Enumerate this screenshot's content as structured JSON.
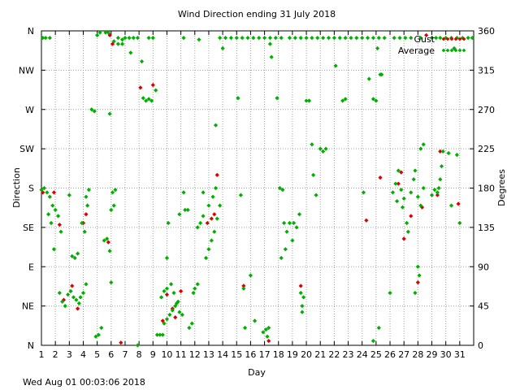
{
  "footer": {
    "timestamp": "Wed Aug 01 00:03:06 2018"
  },
  "chart_data": {
    "type": "scatter",
    "title": "Wind Direction ending 31 July 2018",
    "xlabel": "Day",
    "ylabel_left": "Direction",
    "ylabel_right": "Degrees",
    "xlim": [
      1,
      32
    ],
    "ylim": [
      0,
      360
    ],
    "grid": true,
    "legend_position": "top-right",
    "x_ticks": [
      1,
      2,
      3,
      4,
      5,
      6,
      7,
      8,
      9,
      10,
      11,
      12,
      13,
      14,
      15,
      16,
      17,
      18,
      19,
      20,
      21,
      22,
      23,
      24,
      25,
      26,
      27,
      28,
      29,
      30,
      31
    ],
    "x_tick_labels": [
      "1",
      "2",
      "3",
      "4",
      "5",
      "6",
      "7",
      "8",
      "9",
      "10",
      "11",
      "12",
      "13",
      "14",
      "15",
      "16",
      "17",
      "18",
      "19",
      "20",
      "21",
      "22",
      "23",
      "24",
      "25",
      "26",
      "27",
      "28",
      "29",
      "30",
      "31"
    ],
    "left_ticks": [
      0,
      45,
      90,
      135,
      180,
      225,
      270,
      315,
      360
    ],
    "left_tick_labels": [
      "N",
      "NE",
      "E",
      "SE",
      "S",
      "SW",
      "W",
      "NW",
      "N"
    ],
    "right_ticks": [
      0,
      45,
      90,
      135,
      180,
      225,
      270,
      315,
      360
    ],
    "right_tick_labels": [
      "0",
      "45",
      "90",
      "135",
      "180",
      "225",
      "270",
      "315",
      "360"
    ],
    "colors": {
      "gust": "#dd0000",
      "average": "#00b000",
      "grid": "#a0a0a0"
    },
    "series": [
      {
        "name": "Gust",
        "points": [
          [
            1.1,
            175
          ],
          [
            1.9,
            175
          ],
          [
            2.3,
            138
          ],
          [
            2.6,
            52
          ],
          [
            3.2,
            68
          ],
          [
            3.6,
            42
          ],
          [
            4.0,
            140
          ],
          [
            4.2,
            150
          ],
          [
            5.8,
            118
          ],
          [
            5.9,
            355
          ],
          [
            6.1,
            345
          ],
          [
            6.7,
            3
          ],
          [
            8.1,
            295
          ],
          [
            9.0,
            298
          ],
          [
            9.7,
            28
          ],
          [
            10.0,
            58
          ],
          [
            10.4,
            42
          ],
          [
            10.6,
            32
          ],
          [
            11.0,
            62
          ],
          [
            12.9,
            140
          ],
          [
            13.2,
            145
          ],
          [
            13.4,
            150
          ],
          [
            13.6,
            195
          ],
          [
            15.5,
            68
          ],
          [
            17.3,
            5
          ],
          [
            19.6,
            68
          ],
          [
            24.3,
            143
          ],
          [
            25.3,
            192
          ],
          [
            26.6,
            185
          ],
          [
            26.8,
            198
          ],
          [
            27.0,
            122
          ],
          [
            27.5,
            148
          ],
          [
            28.0,
            72
          ],
          [
            28.3,
            158
          ],
          [
            28.6,
            355
          ],
          [
            29.4,
            172
          ],
          [
            29.6,
            222
          ],
          [
            30.9,
            162
          ]
        ]
      },
      {
        "name": "Average",
        "points": [
          [
            1.1,
            352
          ],
          [
            1.3,
            352
          ],
          [
            1.6,
            352
          ],
          [
            1.0,
            178
          ],
          [
            1.2,
            180
          ],
          [
            1.4,
            175
          ],
          [
            1.6,
            170
          ],
          [
            1.8,
            160
          ],
          [
            2.0,
            155
          ],
          [
            2.2,
            148
          ],
          [
            2.4,
            130
          ],
          [
            1.5,
            150
          ],
          [
            1.7,
            140
          ],
          [
            1.9,
            110
          ],
          [
            2.3,
            60
          ],
          [
            2.5,
            50
          ],
          [
            2.7,
            45
          ],
          [
            2.9,
            58
          ],
          [
            3.1,
            62
          ],
          [
            3.3,
            55
          ],
          [
            3.5,
            52
          ],
          [
            3.7,
            48
          ],
          [
            3.2,
            102
          ],
          [
            3.4,
            100
          ],
          [
            3.6,
            105
          ],
          [
            3.0,
            172
          ],
          [
            3.9,
            140
          ],
          [
            4.1,
            130
          ],
          [
            4.3,
            160
          ],
          [
            4.2,
            170
          ],
          [
            4.4,
            178
          ],
          [
            3.8,
            55
          ],
          [
            4.0,
            60
          ],
          [
            4.2,
            70
          ],
          [
            4.6,
            270
          ],
          [
            4.8,
            268
          ],
          [
            4.9,
            10
          ],
          [
            5.1,
            12
          ],
          [
            5.3,
            20
          ],
          [
            5.0,
            355
          ],
          [
            5.2,
            358
          ],
          [
            5.6,
            358
          ],
          [
            5.8,
            358
          ],
          [
            5.5,
            120
          ],
          [
            5.7,
            122
          ],
          [
            5.9,
            108
          ],
          [
            6.0,
            155
          ],
          [
            6.2,
            160
          ],
          [
            6.1,
            175
          ],
          [
            6.3,
            178
          ],
          [
            5.9,
            265
          ],
          [
            6.0,
            72
          ],
          [
            6.2,
            348
          ],
          [
            6.5,
            352
          ],
          [
            6.8,
            350
          ],
          [
            7.0,
            352
          ],
          [
            7.3,
            352
          ],
          [
            7.6,
            352
          ],
          [
            7.9,
            352
          ],
          [
            6.5,
            345
          ],
          [
            6.8,
            345
          ],
          [
            7.4,
            335
          ],
          [
            8.2,
            325
          ],
          [
            8.5,
            280
          ],
          [
            8.7,
            282
          ],
          [
            8.9,
            280
          ],
          [
            8.3,
            283
          ],
          [
            7.9,
            0
          ],
          [
            8.7,
            352
          ],
          [
            9.0,
            352
          ],
          [
            9.3,
            12
          ],
          [
            9.5,
            12
          ],
          [
            9.7,
            12
          ],
          [
            9.2,
            292
          ],
          [
            9.8,
            25
          ],
          [
            10.0,
            30
          ],
          [
            10.2,
            35
          ],
          [
            10.4,
            40
          ],
          [
            10.6,
            45
          ],
          [
            10.8,
            50
          ],
          [
            9.6,
            55
          ],
          [
            9.8,
            62
          ],
          [
            10.0,
            65
          ],
          [
            10.3,
            70
          ],
          [
            10.5,
            60
          ],
          [
            10.7,
            48
          ],
          [
            10.9,
            38
          ],
          [
            11.1,
            35
          ],
          [
            10.0,
            100
          ],
          [
            10.1,
            140
          ],
          [
            10.9,
            150
          ],
          [
            11.3,
            155
          ],
          [
            11.5,
            155
          ],
          [
            11.2,
            175
          ],
          [
            11.6,
            20
          ],
          [
            11.8,
            25
          ],
          [
            12.0,
            65
          ],
          [
            12.2,
            70
          ],
          [
            11.9,
            60
          ],
          [
            12.2,
            135
          ],
          [
            12.4,
            140
          ],
          [
            12.6,
            148
          ],
          [
            12.8,
            100
          ],
          [
            13.0,
            110
          ],
          [
            13.2,
            120
          ],
          [
            13.4,
            130
          ],
          [
            13.6,
            145
          ],
          [
            13.8,
            160
          ],
          [
            13.0,
            160
          ],
          [
            13.3,
            170
          ],
          [
            13.5,
            180
          ],
          [
            12.6,
            175
          ],
          [
            12.3,
            350
          ],
          [
            11.2,
            352
          ],
          [
            13.5,
            252
          ],
          [
            13.8,
            352
          ],
          [
            14.2,
            352
          ],
          [
            14.6,
            352
          ],
          [
            15.0,
            352
          ],
          [
            15.4,
            352
          ],
          [
            15.8,
            352
          ],
          [
            16.2,
            352
          ],
          [
            16.6,
            352
          ],
          [
            17.0,
            352
          ],
          [
            17.4,
            352
          ],
          [
            17.8,
            352
          ],
          [
            18.2,
            352
          ],
          [
            14.0,
            340
          ],
          [
            15.1,
            283
          ],
          [
            15.3,
            172
          ],
          [
            15.5,
            65
          ],
          [
            16.0,
            80
          ],
          [
            15.6,
            20
          ],
          [
            16.3,
            28
          ],
          [
            16.9,
            15
          ],
          [
            17.1,
            18
          ],
          [
            17.3,
            20
          ],
          [
            17.2,
            10
          ],
          [
            17.5,
            330
          ],
          [
            17.4,
            345
          ],
          [
            17.9,
            283
          ],
          [
            18.1,
            180
          ],
          [
            18.3,
            178
          ],
          [
            18.4,
            140
          ],
          [
            18.6,
            130
          ],
          [
            18.5,
            110
          ],
          [
            18.8,
            140
          ],
          [
            18.2,
            100
          ],
          [
            19.0,
            120
          ],
          [
            19.1,
            140
          ],
          [
            19.3,
            135
          ],
          [
            19.5,
            150
          ],
          [
            19.6,
            60
          ],
          [
            19.8,
            55
          ],
          [
            19.7,
            45
          ],
          [
            19.7,
            38
          ],
          [
            18.8,
            352
          ],
          [
            19.2,
            352
          ],
          [
            19.6,
            352
          ],
          [
            20.0,
            352
          ],
          [
            20.4,
            352
          ],
          [
            20.8,
            352
          ],
          [
            21.2,
            352
          ],
          [
            21.6,
            352
          ],
          [
            22.0,
            352
          ],
          [
            22.4,
            352
          ],
          [
            22.8,
            352
          ],
          [
            23.2,
            352
          ],
          [
            23.6,
            352
          ],
          [
            24.0,
            352
          ],
          [
            24.4,
            352
          ],
          [
            24.8,
            352
          ],
          [
            25.2,
            352
          ],
          [
            25.6,
            352
          ],
          [
            20.0,
            280
          ],
          [
            20.2,
            280
          ],
          [
            20.4,
            230
          ],
          [
            20.5,
            195
          ],
          [
            20.7,
            172
          ],
          [
            21.0,
            225
          ],
          [
            21.2,
            222
          ],
          [
            21.4,
            225
          ],
          [
            22.1,
            320
          ],
          [
            22.6,
            280
          ],
          [
            22.8,
            282
          ],
          [
            24.1,
            175
          ],
          [
            24.5,
            305
          ],
          [
            24.8,
            282
          ],
          [
            25.0,
            280
          ],
          [
            25.1,
            340
          ],
          [
            25.3,
            310
          ],
          [
            25.4,
            310
          ],
          [
            24.8,
            5
          ],
          [
            25.2,
            20
          ],
          [
            26.0,
            60
          ],
          [
            26.2,
            175
          ],
          [
            26.4,
            185
          ],
          [
            26.5,
            165
          ],
          [
            26.6,
            200
          ],
          [
            26.8,
            178
          ],
          [
            26.9,
            158
          ],
          [
            27.0,
            168
          ],
          [
            27.2,
            140
          ],
          [
            27.3,
            130
          ],
          [
            27.5,
            175
          ],
          [
            27.7,
            190
          ],
          [
            27.8,
            200
          ],
          [
            28.0,
            170
          ],
          [
            28.2,
            160
          ],
          [
            28.4,
            180
          ],
          [
            28.0,
            90
          ],
          [
            28.1,
            80
          ],
          [
            27.8,
            60
          ],
          [
            28.2,
            225
          ],
          [
            28.4,
            230
          ],
          [
            26.3,
            352
          ],
          [
            26.7,
            352
          ],
          [
            27.1,
            352
          ],
          [
            27.5,
            352
          ],
          [
            28.2,
            352
          ],
          [
            29.0,
            352
          ],
          [
            29.3,
            352
          ],
          [
            29.6,
            352
          ],
          [
            30.0,
            352
          ],
          [
            30.4,
            352
          ],
          [
            30.8,
            352
          ],
          [
            31.2,
            352
          ],
          [
            31.6,
            352
          ],
          [
            31.9,
            352
          ],
          [
            29.2,
            178
          ],
          [
            29.4,
            175
          ],
          [
            29.6,
            190
          ],
          [
            29.7,
            205
          ],
          [
            29.8,
            222
          ],
          [
            29.5,
            180
          ],
          [
            29.0,
            172
          ],
          [
            30.2,
            220
          ],
          [
            30.4,
            160
          ],
          [
            30.6,
            340
          ],
          [
            30.8,
            218
          ],
          [
            31.0,
            140
          ]
        ]
      }
    ]
  }
}
